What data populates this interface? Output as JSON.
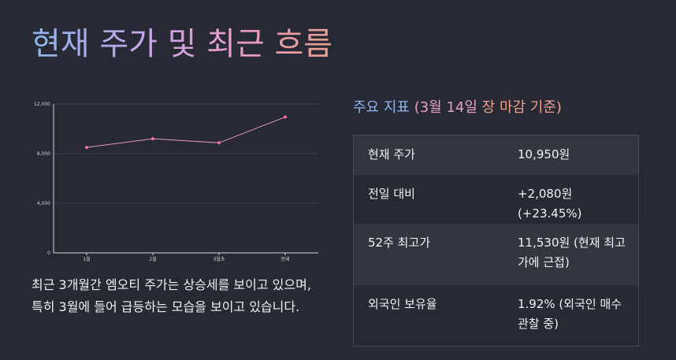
{
  "page": {
    "title": "현재 주가 및 최근 흐름",
    "summary": "최근 3개월간 엠오티 주가는 상승세를 보이고 있으며, 특히 3월에 들어 급등하는 모습을 보이고 있습니다."
  },
  "metrics": {
    "title_prefix": "주요 지표",
    "title_paren": "(3월 14일",
    "title_suffix": "장 마감 기준)",
    "rows": [
      {
        "label": "현재 주가",
        "value": "10,950원"
      },
      {
        "label": "전일 대비",
        "value": "+2,080원 (+23.45%)"
      },
      {
        "label": "52주 최고가",
        "value": "11,530원 (현재 최고가에 근접)"
      },
      {
        "label": "외국인 보유율",
        "value": "1.92% (외국인 매수 관찰 중)"
      }
    ]
  },
  "chart_data": {
    "type": "line",
    "categories": [
      "1월",
      "2월",
      "3월초",
      "현재"
    ],
    "series": [
      {
        "values": [
          8500,
          9200,
          8870,
          10950
        ],
        "color": "#f06ca8"
      }
    ],
    "yticks": [
      0,
      4000,
      8000,
      12000
    ],
    "ytick_labels": [
      "0",
      "4,000",
      "8,000",
      "12,000"
    ],
    "ylim": [
      0,
      12000
    ],
    "grid": true,
    "line_color": "#e89ac4",
    "point_color": "#f06ca8"
  }
}
